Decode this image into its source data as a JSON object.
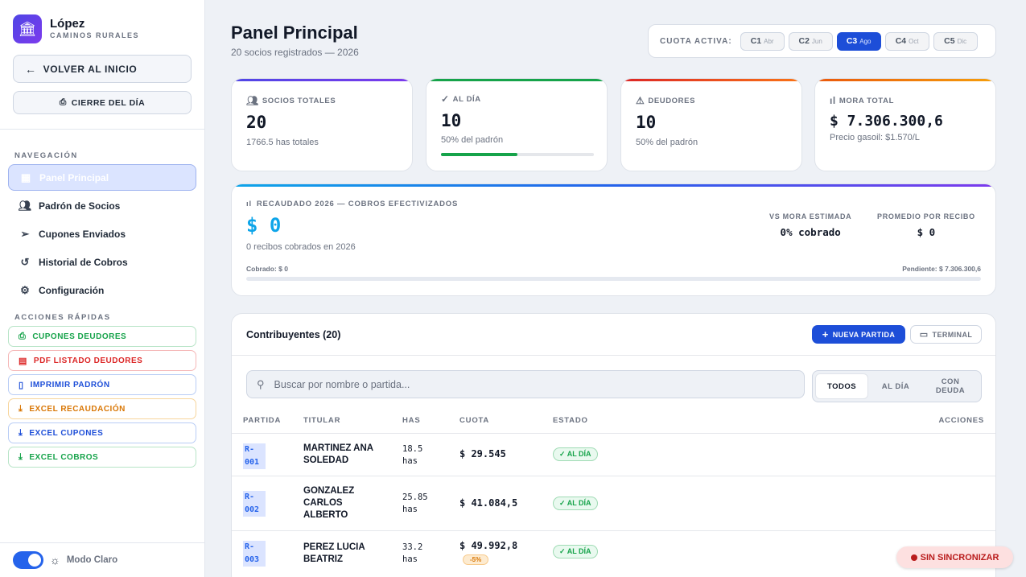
{
  "brand": {
    "name": "López",
    "subtitle": "CAMINOS RURALES",
    "logo_icon": "bank-icon"
  },
  "sidebar": {
    "back_label": "VOLVER AL INICIO",
    "close_day_label": "CIERRE DEL DÍA",
    "nav_section": "NAVEGACIÓN",
    "nav": [
      {
        "label": "Panel Principal",
        "icon": "grid-icon",
        "active": true
      },
      {
        "label": "Padrón de Socios",
        "icon": "users-icon"
      },
      {
        "label": "Cupones Enviados",
        "icon": "send-icon"
      },
      {
        "label": "Historial de Cobros",
        "icon": "history-icon"
      },
      {
        "label": "Configuración",
        "icon": "gear-icon"
      }
    ],
    "quick_section": "ACCIONES RÁPIDAS",
    "quick": [
      {
        "label": "CUPONES DEUDORES",
        "color": "#16a34a"
      },
      {
        "label": "PDF LISTADO DEUDORES",
        "color": "#dc2626"
      },
      {
        "label": "IMPRIMIR PADRÓN",
        "color": "#1d4ed8"
      },
      {
        "label": "EXCEL RECAUDACIÓN",
        "color": "#d97706"
      },
      {
        "label": "EXCEL CUPONES",
        "color": "#1d4ed8"
      },
      {
        "label": "EXCEL COBROS",
        "color": "#16a34a"
      }
    ],
    "mode_label": "Modo Claro"
  },
  "header": {
    "title": "Panel Principal",
    "subtitle": "20 socios registrados — 2026",
    "cuota_label": "CUOTA ACTIVA:",
    "cuotas": [
      {
        "code": "C1",
        "month": "Abr"
      },
      {
        "code": "C2",
        "month": "Jun"
      },
      {
        "code": "C3",
        "month": "Ago",
        "active": true
      },
      {
        "code": "C4",
        "month": "Oct"
      },
      {
        "code": "C5",
        "month": "Dic"
      }
    ]
  },
  "stats": [
    {
      "label": "SOCIOS TOTALES",
      "value": "20",
      "sub": "1766.5 has totales",
      "icon": "users-icon",
      "color": "#4f46e5"
    },
    {
      "label": "AL DÍA",
      "value": "10",
      "sub": "50% del padrón",
      "icon": "check-icon",
      "color": "#16a34a",
      "progress": 0.5
    },
    {
      "label": "DEUDORES",
      "value": "10",
      "sub": "50% del padrón",
      "icon": "warning-icon",
      "color": "#dc2626"
    },
    {
      "label": "MORA TOTAL",
      "value": "$ 7.306.300,6",
      "sub": "Precio gasoil: $1.570/L",
      "icon": "bar-chart-icon",
      "color": "#ea580c"
    }
  ],
  "recaudado": {
    "label": "RECAUDADO 2026 — COBROS EFECTIVIZADOS",
    "value": "$ 0",
    "sub": "0 recibos cobrados en 2026",
    "vs_label": "VS MORA ESTIMADA",
    "vs_value": "0% cobrado",
    "prom_label": "PROMEDIO POR RECIBO",
    "prom_value": "$ 0",
    "cobrado": "Cobrado: $ 0",
    "pendiente": "Pendiente: $ 7.306.300,6",
    "progress": 0
  },
  "table": {
    "title": "Contribuyentes (20)",
    "new_label": "NUEVA PARTIDA",
    "terminal_label": "TERMINAL",
    "search_placeholder": "Buscar por nombre o partida...",
    "filters": [
      {
        "label": "TODOS",
        "active": true
      },
      {
        "label": "AL DÍA"
      },
      {
        "label": "CON DEUDA"
      }
    ],
    "columns": [
      "PARTIDA",
      "TITULAR",
      "HAS",
      "CUOTA",
      "ESTADO",
      "ACCIONES"
    ],
    "rows": [
      {
        "partida": "R-001",
        "titular": "MARTINEZ ANA SOLEDAD",
        "has": "18.5 has",
        "cuota": "$ 29.545",
        "discount": "",
        "estado": "✓ AL DÍA"
      },
      {
        "partida": "R-002",
        "titular": "GONZALEZ CARLOS ALBERTO",
        "has": "25.85 has",
        "cuota": "$ 41.084,5",
        "discount": "",
        "estado": "✓ AL DÍA"
      },
      {
        "partida": "R-003",
        "titular": "PEREZ LUCIA BEATRIZ",
        "has": "33.2 has",
        "cuota": "$ 49.992,8",
        "discount": "-5%",
        "estado": "✓ AL DÍA"
      }
    ]
  },
  "sync_label": "SIN SINCRONIZAR"
}
